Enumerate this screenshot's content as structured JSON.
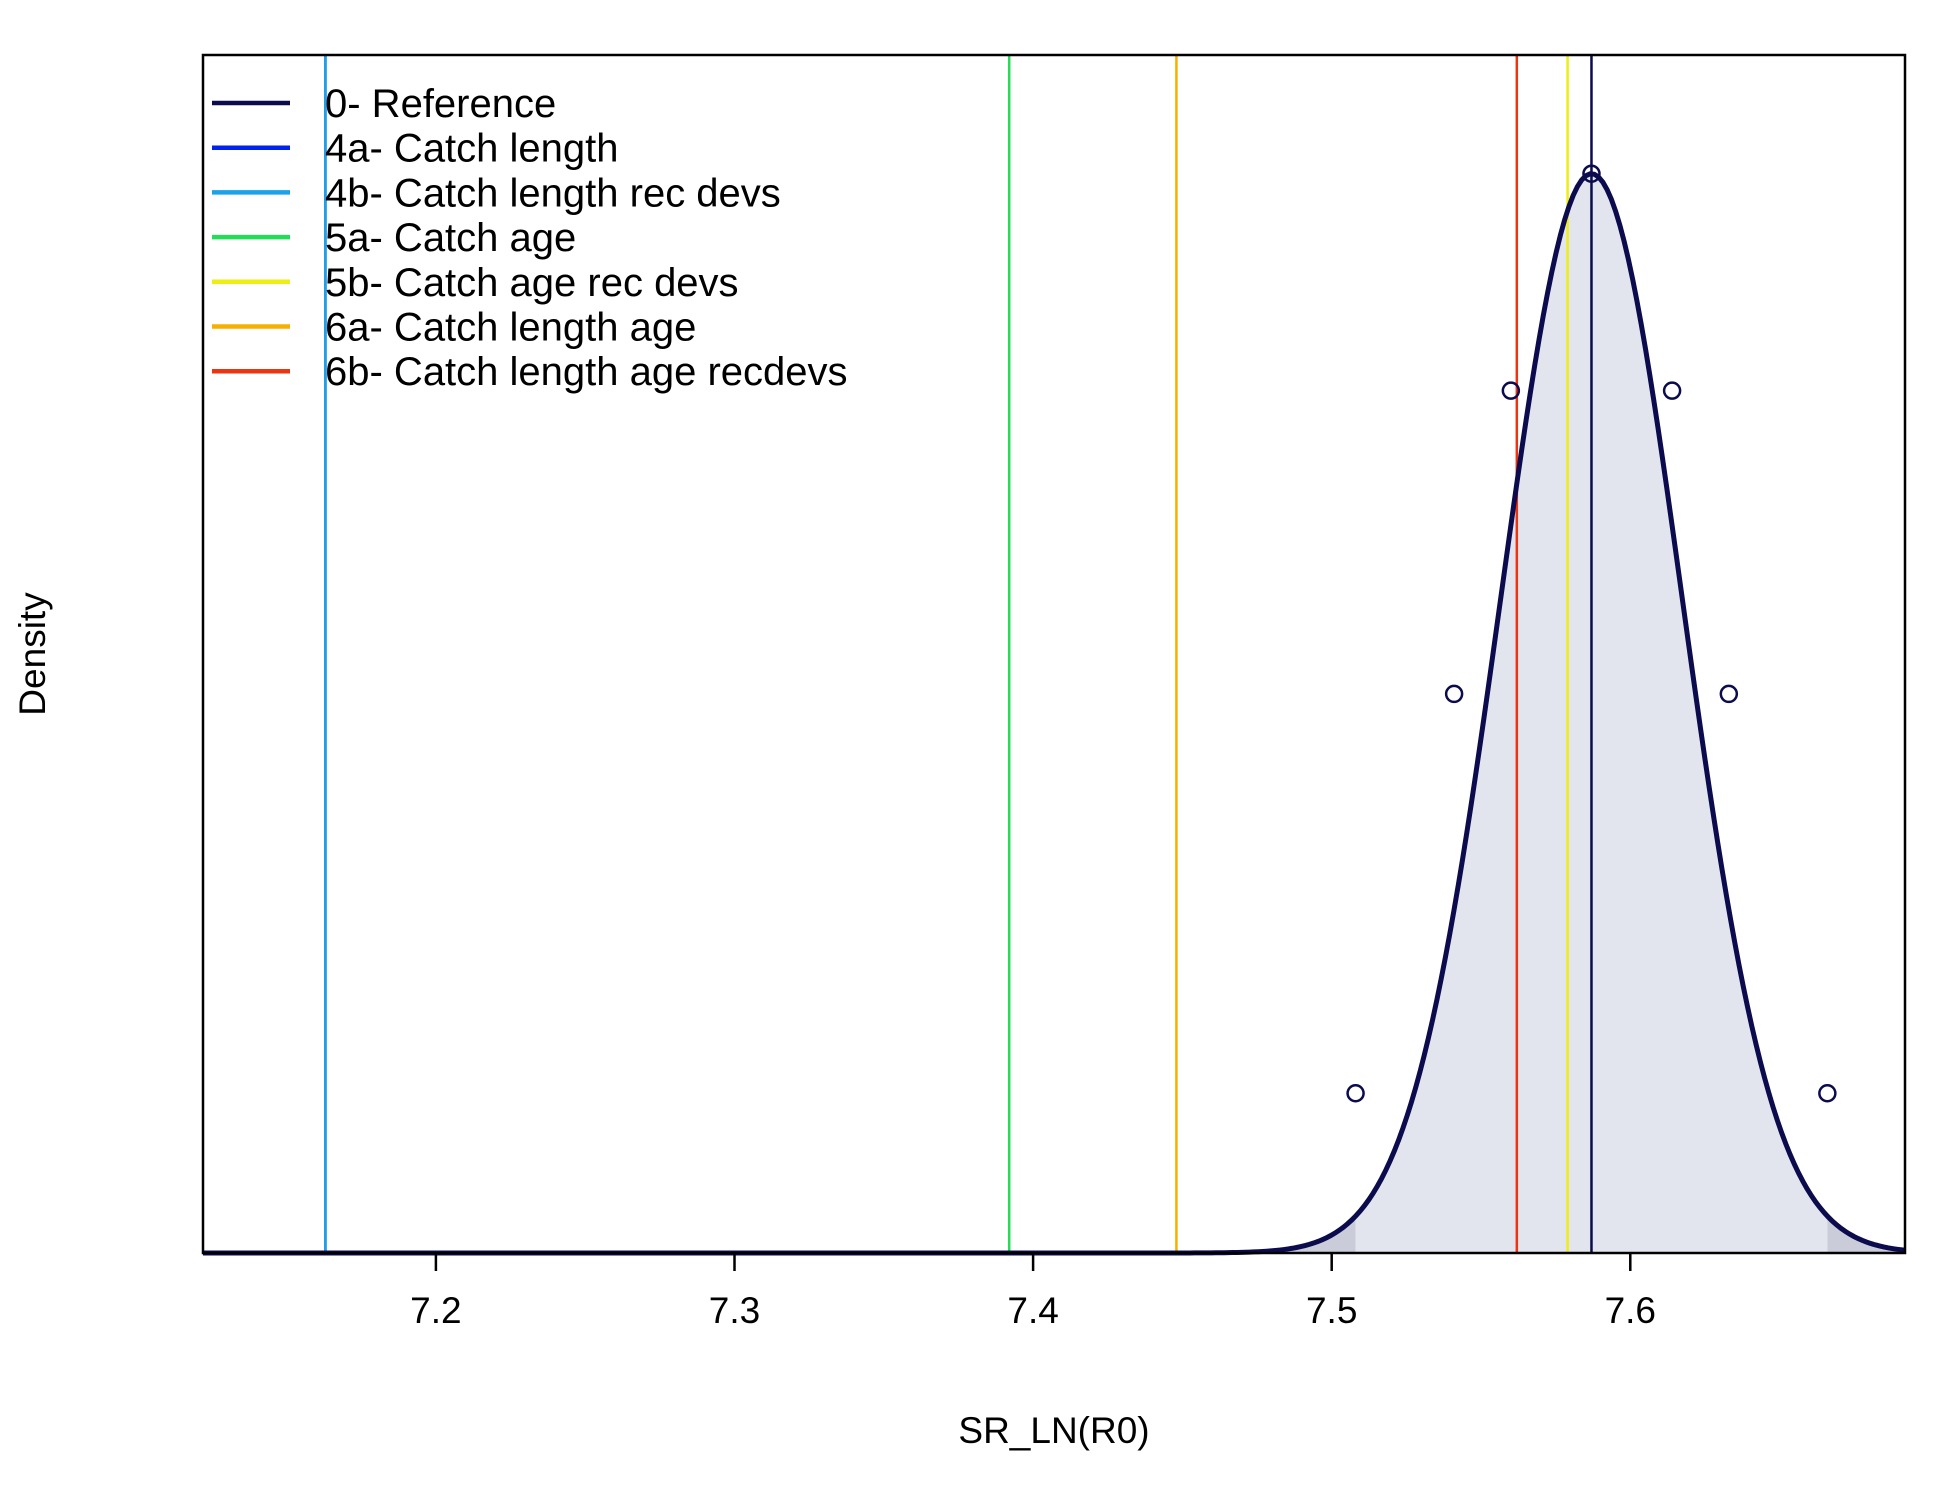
{
  "chart_data": {
    "type": "area",
    "xlabel": "SR_LN(R0)",
    "ylabel": "Density",
    "xlim": [
      7.122,
      7.692
    ],
    "ylim": [
      0,
      1.11
    ],
    "x_ticks": [
      "7.2",
      "7.3",
      "7.4",
      "7.5",
      "7.6"
    ],
    "y_ticks_shown": false,
    "legend_position": "top-left",
    "density": {
      "series_name": "0- Reference",
      "color": "#0b0b4d",
      "mean": 7.587,
      "sd": 0.0304,
      "peak_density": 1.0,
      "shade_color": "#e3e5ee",
      "tail_shade_color": "#cbccda",
      "ci_low": 7.508,
      "ci_high": 7.666,
      "marker_points": [
        {
          "x": 7.508,
          "y": 0.148
        },
        {
          "x": 7.541,
          "y": 0.518
        },
        {
          "x": 7.56,
          "y": 0.799
        },
        {
          "x": 7.587,
          "y": 1.0
        },
        {
          "x": 7.614,
          "y": 0.799
        },
        {
          "x": 7.633,
          "y": 0.518
        },
        {
          "x": 7.666,
          "y": 0.148
        }
      ]
    },
    "series": [
      {
        "name": "0- Reference",
        "color": "#0b0b4d",
        "x": 7.587
      },
      {
        "name": "4a- Catch length",
        "color": "#0022ee",
        "x": 7.163
      },
      {
        "name": "4b- Catch length rec devs",
        "color": "#1aa3e8",
        "x": 7.163
      },
      {
        "name": "5a- Catch age",
        "color": "#22dd55",
        "x": 7.392
      },
      {
        "name": "5b- Catch age rec devs",
        "color": "#eeee11",
        "x": 7.579
      },
      {
        "name": "6a- Catch length age",
        "color": "#f5b000",
        "x": 7.448
      },
      {
        "name": "6b- Catch length age recdevs",
        "color": "#ee3311",
        "x": 7.562
      }
    ]
  }
}
